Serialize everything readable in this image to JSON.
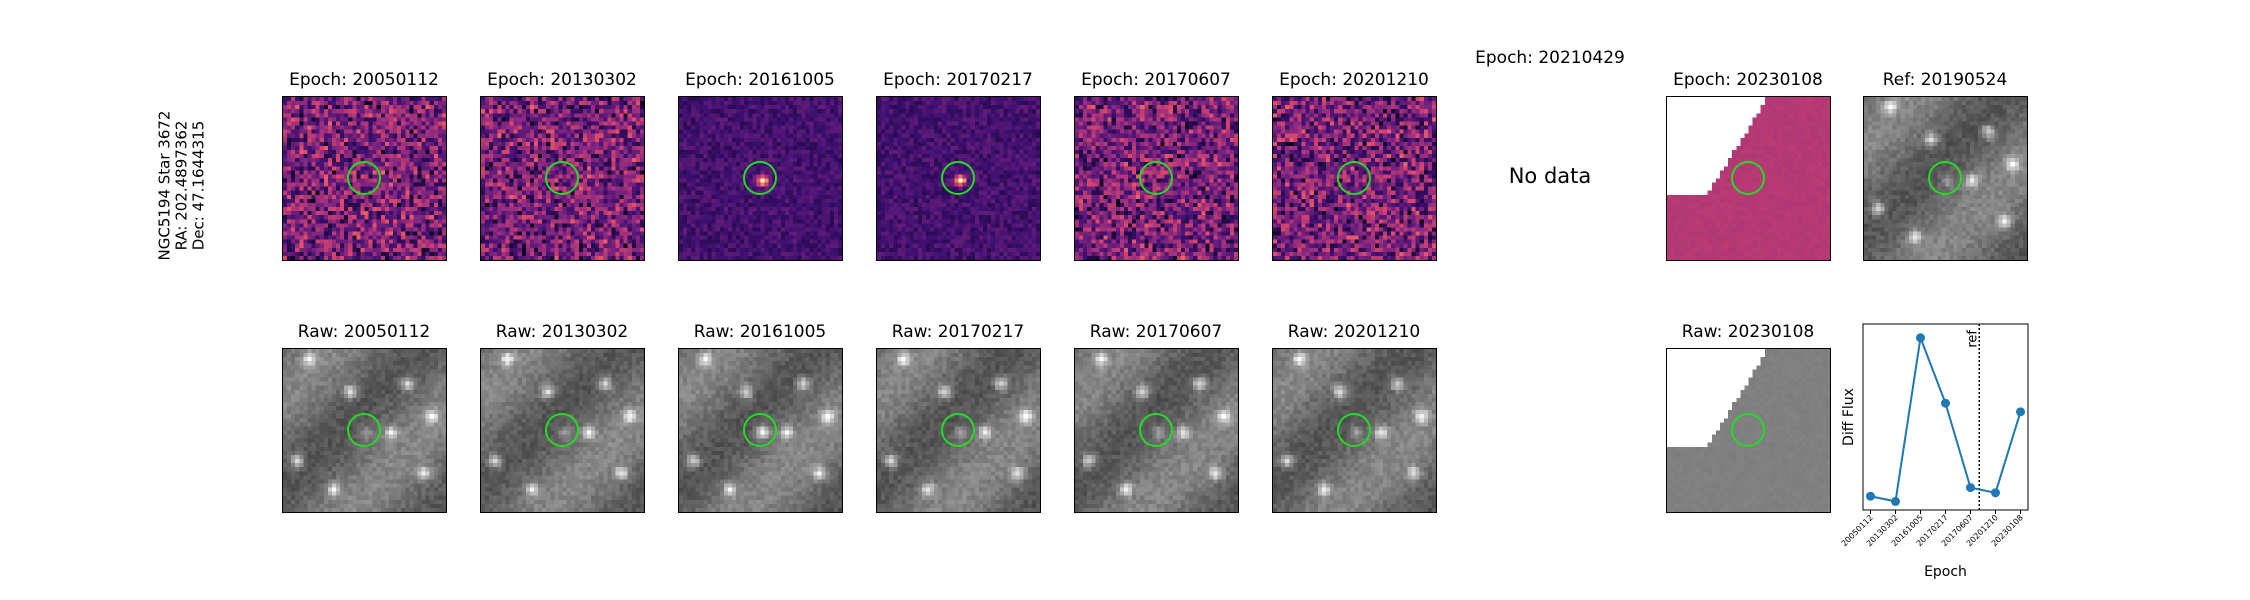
{
  "object_label": {
    "name": "NGC5194 Star 3672",
    "ra": "RA: 202.4897362",
    "dec": "Dec: 47.1644315"
  },
  "diff_panels": [
    {
      "title": "Epoch: 20050112",
      "style": "noise",
      "seed": 11
    },
    {
      "title": "Epoch: 20130302",
      "style": "noise",
      "seed": 23
    },
    {
      "title": "Epoch: 20161005",
      "style": "dark-source",
      "seed": 37
    },
    {
      "title": "Epoch: 20170217",
      "style": "dark-source",
      "seed": 41
    },
    {
      "title": "Epoch: 20170607",
      "style": "noise",
      "seed": 53
    },
    {
      "title": "Epoch: 20201210",
      "style": "noise",
      "seed": 67
    }
  ],
  "missing_panel": {
    "title": "Epoch: 20210429",
    "message": "No data"
  },
  "edge_panel": {
    "title": "Epoch: 20230108"
  },
  "ref_panel": {
    "title": "Ref: 20190524"
  },
  "raw_panels": [
    {
      "title": "Raw: 20050112",
      "seed": 101
    },
    {
      "title": "Raw: 20130302",
      "seed": 113
    },
    {
      "title": "Raw: 20161005",
      "seed": 127
    },
    {
      "title": "Raw: 20170217",
      "seed": 131
    },
    {
      "title": "Raw: 20170607",
      "seed": 137
    },
    {
      "title": "Raw: 20201210",
      "seed": 149
    }
  ],
  "raw_edge_panel": {
    "title": "Raw: 20230108"
  },
  "colors": {
    "ring": "#22dd22",
    "line": "#1f77b4",
    "magma_dark": "#3b0f70",
    "magma_mid": "#b5367a",
    "magma_bright": "#fb8861",
    "edge_fill": "#b23a88"
  },
  "chart_data": {
    "type": "line",
    "xlabel": "Epoch",
    "ylabel": "Diff Flux",
    "categories": [
      "20050112",
      "20130302",
      "20161005",
      "20170217",
      "20170607",
      "20201210",
      "20230108"
    ],
    "values": [
      0.08,
      0.05,
      1.0,
      0.62,
      0.13,
      0.1,
      0.57
    ],
    "ylim": [
      0,
      1.08
    ],
    "ref_line": {
      "label": "ref",
      "position": 4.35
    }
  }
}
